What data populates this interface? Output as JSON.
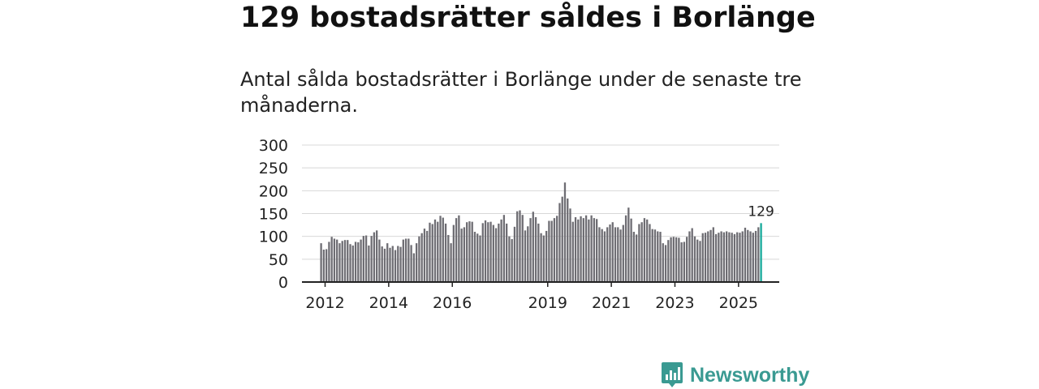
{
  "title": "129 bostadsrätter såldes i Borlänge",
  "subtitle": "Antal sålda bostadsrätter i Borlänge under de senaste tre månaderna.",
  "brand": {
    "name": "Newsworthy",
    "icon": "newsworthy-logo-icon"
  },
  "colors": {
    "bar": "#6e6d73",
    "highlight": "#16a99a",
    "axis": "#222222",
    "grid": "#d8d8d8",
    "brand": "#3a9a92"
  },
  "chart_data": {
    "type": "bar",
    "title": "129 bostadsrätter såldes i Borlänge",
    "xlabel": "",
    "ylabel": "",
    "ylim": [
      0,
      300
    ],
    "yticks": [
      0,
      50,
      100,
      150,
      200,
      250,
      300
    ],
    "xticks": [
      {
        "label": "2012",
        "month": 0
      },
      {
        "label": "2014",
        "month": 24
      },
      {
        "label": "2016",
        "month": 48
      },
      {
        "label": "2019",
        "month": 84
      },
      {
        "label": "2021",
        "month": 108
      },
      {
        "label": "2023",
        "month": 132
      },
      {
        "label": "2025",
        "month": 156
      }
    ],
    "start": "2012-01",
    "bar_month_offset": -1.5,
    "values": [
      85,
      71,
      72,
      88,
      99,
      95,
      93,
      85,
      90,
      92,
      92,
      83,
      80,
      88,
      87,
      93,
      101,
      102,
      80,
      101,
      109,
      113,
      93,
      78,
      73,
      85,
      75,
      79,
      70,
      79,
      77,
      93,
      95,
      95,
      81,
      63,
      85,
      100,
      107,
      117,
      112,
      130,
      127,
      137,
      132,
      145,
      141,
      128,
      103,
      85,
      125,
      140,
      146,
      117,
      120,
      131,
      133,
      132,
      110,
      106,
      102,
      129,
      135,
      131,
      132,
      125,
      118,
      128,
      137,
      147,
      128,
      100,
      94,
      121,
      155,
      157,
      147,
      113,
      122,
      140,
      154,
      142,
      128,
      107,
      102,
      112,
      134,
      134,
      140,
      145,
      173,
      187,
      218,
      183,
      161,
      132,
      142,
      137,
      144,
      140,
      146,
      137,
      146,
      140,
      138,
      120,
      116,
      111,
      120,
      126,
      131,
      120,
      120,
      115,
      125,
      146,
      163,
      139,
      110,
      104,
      127,
      131,
      140,
      137,
      127,
      116,
      115,
      111,
      110,
      85,
      81,
      92,
      98,
      99,
      98,
      97,
      87,
      88,
      99,
      111,
      118,
      100,
      93,
      90,
      107,
      108,
      111,
      114,
      120,
      105,
      108,
      111,
      109,
      111,
      109,
      108,
      105,
      109,
      108,
      111,
      119,
      114,
      111,
      108,
      112,
      120,
      129
    ],
    "last_value_label": "129"
  }
}
